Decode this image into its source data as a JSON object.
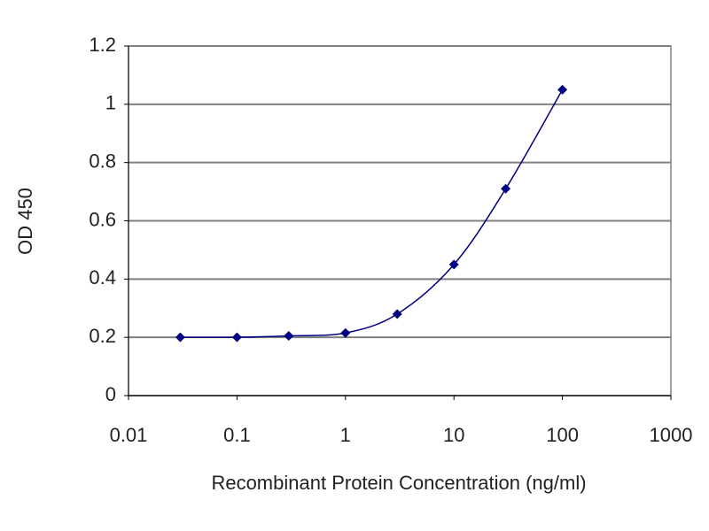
{
  "chart_data": {
    "type": "line",
    "x_label": "Recombinant Protein Concentration (ng/ml)",
    "y_label": "OD 450",
    "x": [
      0.03,
      0.1,
      0.3,
      1,
      3,
      10,
      30,
      100
    ],
    "values": [
      0.2,
      0.2,
      0.205,
      0.215,
      0.28,
      0.45,
      0.71,
      1.05
    ],
    "color": "#000080",
    "xscale": "log",
    "xlim": [
      0.01,
      1000
    ],
    "xticks": [
      0.01,
      0.1,
      1,
      10,
      100,
      1000
    ],
    "ylim": [
      0,
      1.2
    ],
    "yticks": [
      0,
      0.2,
      0.4,
      0.6,
      0.8,
      1,
      1.2
    ],
    "grid": true,
    "smooth": true,
    "markers": true
  }
}
